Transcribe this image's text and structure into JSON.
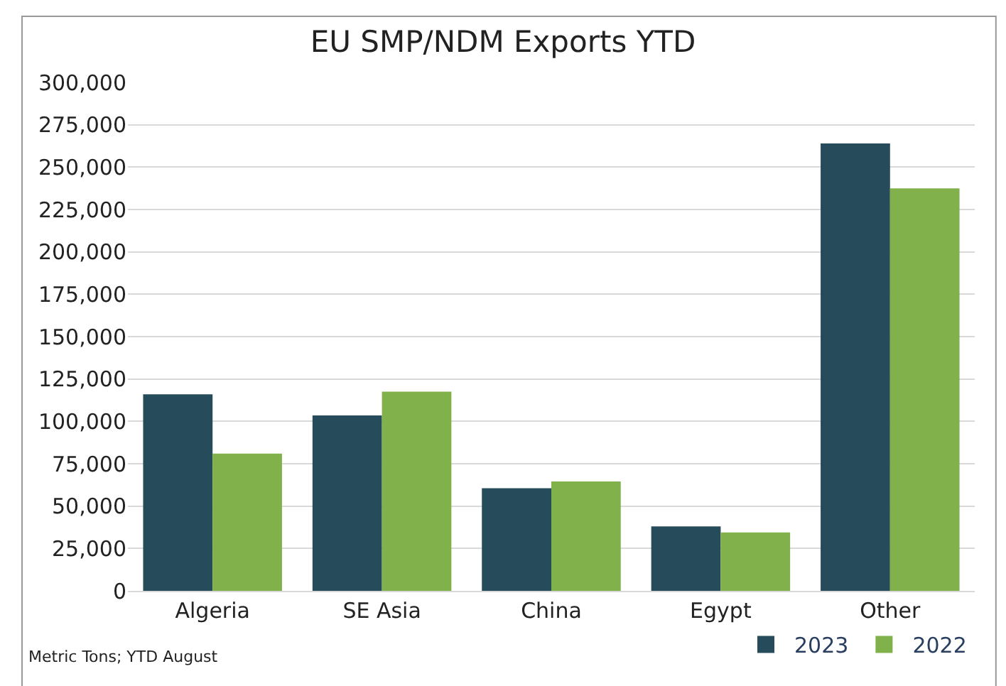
{
  "chart_data": {
    "type": "bar",
    "title": "EU SMP/NDM Exports YTD",
    "categories": [
      "Algeria",
      "SE Asia",
      "China",
      "Egypt",
      "Other"
    ],
    "series": [
      {
        "name": "2023",
        "color": "#264b5a",
        "values": [
          116000,
          103500,
          60500,
          38000,
          264000
        ]
      },
      {
        "name": "2022",
        "color": "#80b14b",
        "values": [
          81000,
          117500,
          64500,
          34500,
          237500
        ]
      }
    ],
    "ylim": [
      0,
      300000
    ],
    "yticks": [
      {
        "value": 0,
        "label": "0"
      },
      {
        "value": 25000,
        "label": "25,000"
      },
      {
        "value": 50000,
        "label": "50,000"
      },
      {
        "value": 75000,
        "label": "75,000"
      },
      {
        "value": 100000,
        "label": "100,000"
      },
      {
        "value": 125000,
        "label": "125,000"
      },
      {
        "value": 150000,
        "label": "150,000"
      },
      {
        "value": 175000,
        "label": "175,000"
      },
      {
        "value": 200000,
        "label": "200,000"
      },
      {
        "value": 225000,
        "label": "225,000"
      },
      {
        "value": 250000,
        "label": "250,000"
      },
      {
        "value": 275000,
        "label": "275,000"
      },
      {
        "value": 300000,
        "label": "300,000"
      }
    ],
    "grid": "y",
    "legend": "bottom right",
    "annotations": [
      "Metric Tons; YTD August"
    ]
  }
}
